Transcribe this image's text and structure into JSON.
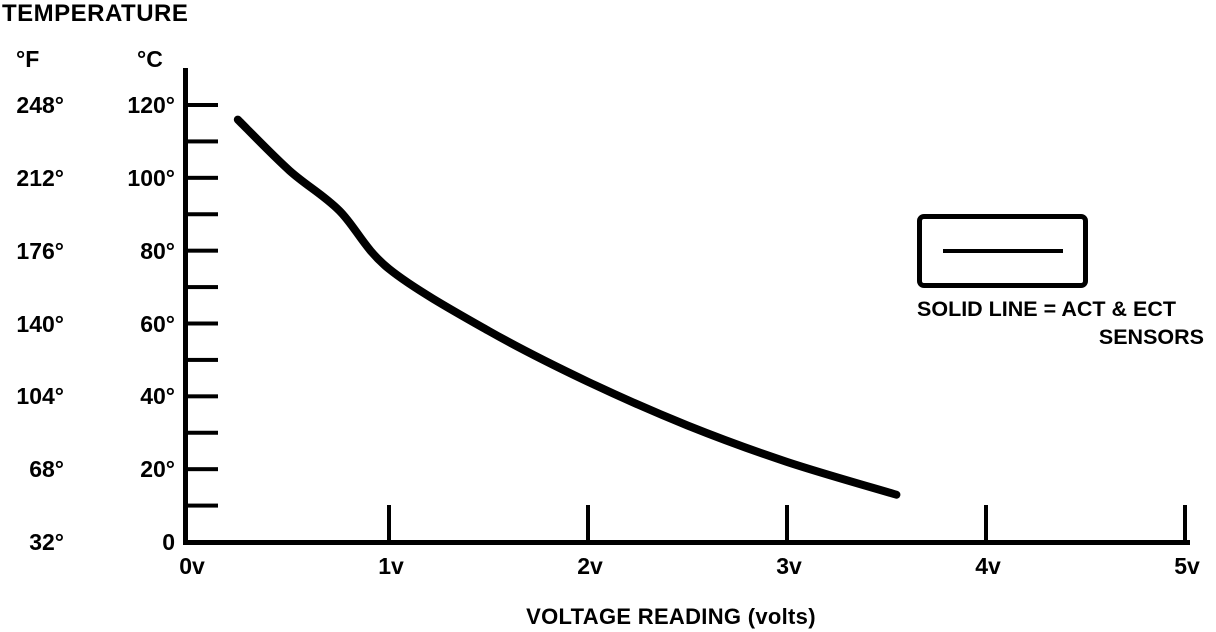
{
  "figure": {
    "background": "#ffffff",
    "ink": "#000000"
  },
  "chart_data": {
    "type": "line",
    "title": "TEMPERATURE",
    "xlabel": "VOLTAGE READING (volts)",
    "grid": false,
    "y_axis": {
      "fahrenheit_header": "°F",
      "celsius_header": "°C",
      "ylim_c": [
        0,
        120
      ],
      "minor_tick_step_c": 10,
      "rows": [
        {
          "fahrenheit": "248°",
          "celsius": "120°",
          "celsius_value": 120
        },
        {
          "fahrenheit": "212°",
          "celsius": "100°",
          "celsius_value": 100
        },
        {
          "fahrenheit": "176°",
          "celsius": "80°",
          "celsius_value": 80
        },
        {
          "fahrenheit": "140°",
          "celsius": "60°",
          "celsius_value": 60
        },
        {
          "fahrenheit": "104°",
          "celsius": "40°",
          "celsius_value": 40
        },
        {
          "fahrenheit": "68°",
          "celsius": "20°",
          "celsius_value": 20
        },
        {
          "fahrenheit": "32°",
          "celsius": "0",
          "celsius_value": 0
        }
      ]
    },
    "x_axis": {
      "xlim": [
        0,
        5
      ],
      "ticks": [
        {
          "label": "0v",
          "value": 0
        },
        {
          "label": "1v",
          "value": 1
        },
        {
          "label": "2v",
          "value": 2
        },
        {
          "label": "3v",
          "value": 3
        },
        {
          "label": "4v",
          "value": 4
        },
        {
          "label": "5v",
          "value": 5
        }
      ]
    },
    "series": [
      {
        "name": "ACT & ECT SENSORS",
        "style": "solid",
        "points": [
          {
            "volts": 0.24,
            "celsius": 116
          },
          {
            "volts": 0.5,
            "celsius": 102
          },
          {
            "volts": 0.75,
            "celsius": 91
          },
          {
            "volts": 1.0,
            "celsius": 75
          },
          {
            "volts": 1.5,
            "celsius": 58
          },
          {
            "volts": 2.0,
            "celsius": 44
          },
          {
            "volts": 2.5,
            "celsius": 32
          },
          {
            "volts": 3.0,
            "celsius": 22
          },
          {
            "volts": 3.55,
            "celsius": 13
          }
        ]
      }
    ],
    "legend": {
      "line1": "SOLID LINE = ACT & ECT",
      "line2": "SENSORS"
    }
  }
}
